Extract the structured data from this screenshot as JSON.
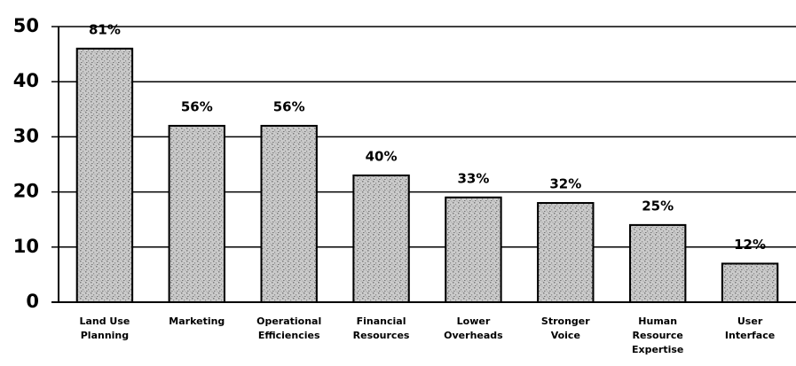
{
  "chart_data": {
    "type": "bar",
    "categories": [
      "Land Use\nPlanning",
      "Marketing",
      "Operational\nEfficiencies",
      "Financial\nResources",
      "Lower\nOverheads",
      "Stronger\nVoice",
      "Human\nResource\nExpertise",
      "User\nInterface"
    ],
    "values": [
      46,
      32,
      32,
      23,
      19,
      18,
      14,
      7
    ],
    "annotations": [
      "81%",
      "56%",
      "56%",
      "40%",
      "33%",
      "32%",
      "25%",
      "12%"
    ],
    "color": "#b8b8b8",
    "ylim": [
      0,
      50
    ],
    "yticks": [
      0,
      10,
      20,
      30,
      40,
      50
    ],
    "grid": true
  }
}
